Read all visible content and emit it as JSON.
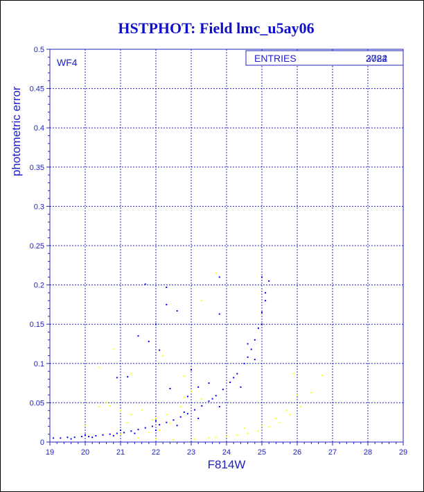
{
  "chart_data": {
    "type": "scatter",
    "title": "HSTPHOT: Field lmc_u5ay06",
    "subtitle": "WF4",
    "xlabel": "F814W",
    "ylabel": "photometric error",
    "xlim": [
      19,
      29
    ],
    "ylim": [
      0,
      0.5
    ],
    "x_ticks": [
      "19",
      "20",
      "21",
      "22",
      "23",
      "24",
      "25",
      "26",
      "27",
      "28",
      "29"
    ],
    "y_ticks": [
      "0",
      "0.05",
      "0.1",
      "0.15",
      "0.2",
      "0.25",
      "0.3",
      "0.35",
      "0.4",
      "0.45",
      "0.5"
    ],
    "grid": true,
    "legend": {
      "label": "ENTRIES",
      "value_overlap_1": "3782",
      "value_overlap_2": "2024",
      "position": "top-right"
    },
    "colors": {
      "primary": "#0000ff",
      "secondary": "#ffff00",
      "text": "#2020c0"
    },
    "series": [
      {
        "color": "#0000ff",
        "points": [
          [
            19.1,
            0.005
          ],
          [
            19.3,
            0.005
          ],
          [
            19.5,
            0.006
          ],
          [
            19.7,
            0.006
          ],
          [
            19.9,
            0.007
          ],
          [
            20.1,
            0.007
          ],
          [
            20.3,
            0.008
          ],
          [
            20.5,
            0.009
          ],
          [
            20.7,
            0.01
          ],
          [
            20.9,
            0.011
          ],
          [
            21.1,
            0.012
          ],
          [
            21.3,
            0.014
          ],
          [
            21.5,
            0.016
          ],
          [
            21.7,
            0.018
          ],
          [
            21.9,
            0.02
          ],
          [
            22.1,
            0.022
          ],
          [
            22.3,
            0.025
          ],
          [
            22.5,
            0.028
          ],
          [
            22.7,
            0.032
          ],
          [
            22.9,
            0.036
          ],
          [
            23.1,
            0.041
          ],
          [
            23.3,
            0.046
          ],
          [
            23.5,
            0.052
          ],
          [
            23.7,
            0.059
          ],
          [
            23.9,
            0.067
          ],
          [
            24.1,
            0.076
          ],
          [
            24.3,
            0.087
          ],
          [
            24.5,
            0.1
          ],
          [
            24.6,
            0.108
          ],
          [
            24.7,
            0.118
          ],
          [
            24.8,
            0.13
          ],
          [
            24.9,
            0.145
          ],
          [
            25.0,
            0.165
          ],
          [
            25.1,
            0.19
          ],
          [
            25.2,
            0.205
          ],
          [
            19.6,
            0.004
          ],
          [
            20.2,
            0.006
          ],
          [
            20.8,
            0.008
          ],
          [
            21.4,
            0.011
          ],
          [
            22.0,
            0.015
          ],
          [
            22.6,
            0.021
          ],
          [
            23.2,
            0.03
          ],
          [
            23.8,
            0.045
          ],
          [
            24.4,
            0.07
          ],
          [
            24.8,
            0.105
          ],
          [
            20.0,
            0.009
          ],
          [
            21.0,
            0.015
          ],
          [
            22.0,
            0.027
          ],
          [
            22.8,
            0.038
          ],
          [
            23.6,
            0.055
          ],
          [
            24.2,
            0.082
          ],
          [
            24.6,
            0.125
          ],
          [
            25.0,
            0.15
          ],
          [
            25.1,
            0.18
          ],
          [
            25.0,
            0.21
          ],
          [
            21.7,
            0.201
          ],
          [
            22.3,
            0.197
          ],
          [
            22.3,
            0.175
          ],
          [
            22.0,
            0.15
          ],
          [
            22.1,
            0.117
          ],
          [
            21.8,
            0.128
          ],
          [
            21.5,
            0.135
          ],
          [
            20.9,
            0.082
          ],
          [
            21.2,
            0.083
          ],
          [
            23.8,
            0.21
          ],
          [
            23.8,
            0.163
          ],
          [
            22.6,
            0.167
          ],
          [
            23.0,
            0.092
          ],
          [
            22.4,
            0.068
          ],
          [
            22.9,
            0.058
          ],
          [
            23.2,
            0.07
          ],
          [
            23.5,
            0.075
          ]
        ]
      },
      {
        "color": "#ffff00",
        "points": [
          [
            20.0,
            0.021
          ],
          [
            20.4,
            0.045
          ],
          [
            20.7,
            0.046
          ],
          [
            21.0,
            0.04
          ],
          [
            21.3,
            0.035
          ],
          [
            21.6,
            0.041
          ],
          [
            22.0,
            0.03
          ],
          [
            22.4,
            0.024
          ],
          [
            22.8,
            0.057
          ],
          [
            23.0,
            0.065
          ],
          [
            23.3,
            0.055
          ],
          [
            22.7,
            0.045
          ],
          [
            21.9,
            0.028
          ],
          [
            21.2,
            0.025
          ],
          [
            20.6,
            0.05
          ],
          [
            20.4,
            0.095
          ],
          [
            20.8,
            0.118
          ],
          [
            21.3,
            0.087
          ],
          [
            22.2,
            0.11
          ],
          [
            22.8,
            0.084
          ],
          [
            23.3,
            0.18
          ],
          [
            23.7,
            0.215
          ],
          [
            22.3,
            0.035
          ],
          [
            24.3,
            0.009
          ],
          [
            24.6,
            0.011
          ],
          [
            24.9,
            0.014
          ],
          [
            25.2,
            0.019
          ],
          [
            25.5,
            0.025
          ],
          [
            25.8,
            0.035
          ],
          [
            26.1,
            0.045
          ],
          [
            26.4,
            0.063
          ],
          [
            26.7,
            0.085
          ],
          [
            25.9,
            0.087
          ],
          [
            24.0,
            0.007
          ],
          [
            23.7,
            0.006
          ],
          [
            23.5,
            0.005
          ],
          [
            23.1,
            0.004
          ],
          [
            22.5,
            0.003
          ],
          [
            22.0,
            0.004
          ],
          [
            21.5,
            0.005
          ],
          [
            22.1,
            0.015
          ],
          [
            21.8,
            0.012
          ],
          [
            21.0,
            0.01
          ],
          [
            20.5,
            0.01
          ],
          [
            24.5,
            0.018
          ],
          [
            25.0,
            0.021
          ],
          [
            25.4,
            0.03
          ],
          [
            25.7,
            0.04
          ],
          [
            26.0,
            0.06
          ]
        ]
      }
    ]
  }
}
